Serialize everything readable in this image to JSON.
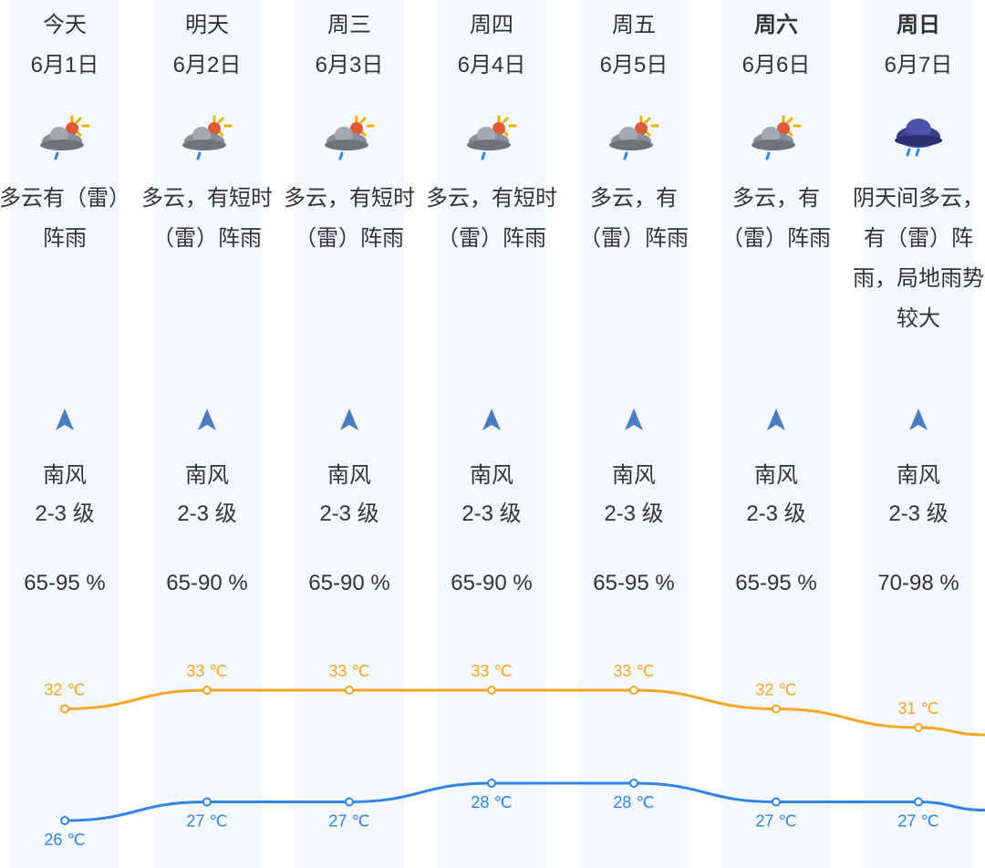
{
  "days": [
    {
      "weekday": "今天",
      "date": "6月1日",
      "icon": "cloudy-sun-rain-icon",
      "desc": "多云有（雷）阵雨",
      "wind_dir": "南风",
      "wind_level": "2-3 级",
      "humidity": "65-95 %",
      "high": "32 ℃",
      "low": "26 ℃"
    },
    {
      "weekday": "明天",
      "date": "6月2日",
      "icon": "cloudy-sun-rain-icon",
      "desc": "多云，有短时（雷）阵雨",
      "wind_dir": "南风",
      "wind_level": "2-3 级",
      "humidity": "65-90 %",
      "high": "33 ℃",
      "low": "27 ℃"
    },
    {
      "weekday": "周三",
      "date": "6月3日",
      "icon": "cloudy-sun-rain-icon",
      "desc": "多云，有短时（雷）阵雨",
      "wind_dir": "南风",
      "wind_level": "2-3 级",
      "humidity": "65-90 %",
      "high": "33 ℃",
      "low": "27 ℃"
    },
    {
      "weekday": "周四",
      "date": "6月4日",
      "icon": "cloudy-sun-rain-icon",
      "desc": "多云，有短时（雷）阵雨",
      "wind_dir": "南风",
      "wind_level": "2-3 级",
      "humidity": "65-90 %",
      "high": "33 ℃",
      "low": "28 ℃"
    },
    {
      "weekday": "周五",
      "date": "6月5日",
      "icon": "cloudy-sun-rain-icon",
      "desc": "多云，有（雷）阵雨",
      "wind_dir": "南风",
      "wind_level": "2-3 级",
      "humidity": "65-95 %",
      "high": "33 ℃",
      "low": "28 ℃"
    },
    {
      "weekday": "周六",
      "date": "6月6日",
      "icon": "cloudy-sun-rain-icon",
      "desc": "多云，有（雷）阵雨",
      "wind_dir": "南风",
      "wind_level": "2-3 级",
      "humidity": "65-95 %",
      "high": "32 ℃",
      "low": "27 ℃"
    },
    {
      "weekday": "周日",
      "date": "6月7日",
      "icon": "overcast-rain-icon",
      "desc": "阴天间多云，有（雷）阵雨，局地雨势较大",
      "wind_dir": "南风",
      "wind_level": "2-3 级",
      "humidity": "70-98 %",
      "high": "31 ℃",
      "low": "27 ℃"
    }
  ],
  "weekend_bold": [
    "周六",
    "周日"
  ],
  "chart_data": {
    "type": "line",
    "categories": [
      "6月1日",
      "6月2日",
      "6月3日",
      "6月4日",
      "6月5日",
      "6月6日",
      "6月7日"
    ],
    "series": [
      {
        "values": [
          32,
          33,
          33,
          33,
          33,
          32,
          31
        ],
        "color": "#f5a623"
      },
      {
        "values": [
          26,
          27,
          27,
          28,
          28,
          27,
          27
        ],
        "color": "#2f84e8"
      }
    ],
    "unit": "℃"
  },
  "colors": {
    "column_bg": "#f5f8fe",
    "text": "#333333",
    "high": "#f5a623",
    "low": "#2f84e8",
    "wind_arrow": "#4a7dc0"
  }
}
